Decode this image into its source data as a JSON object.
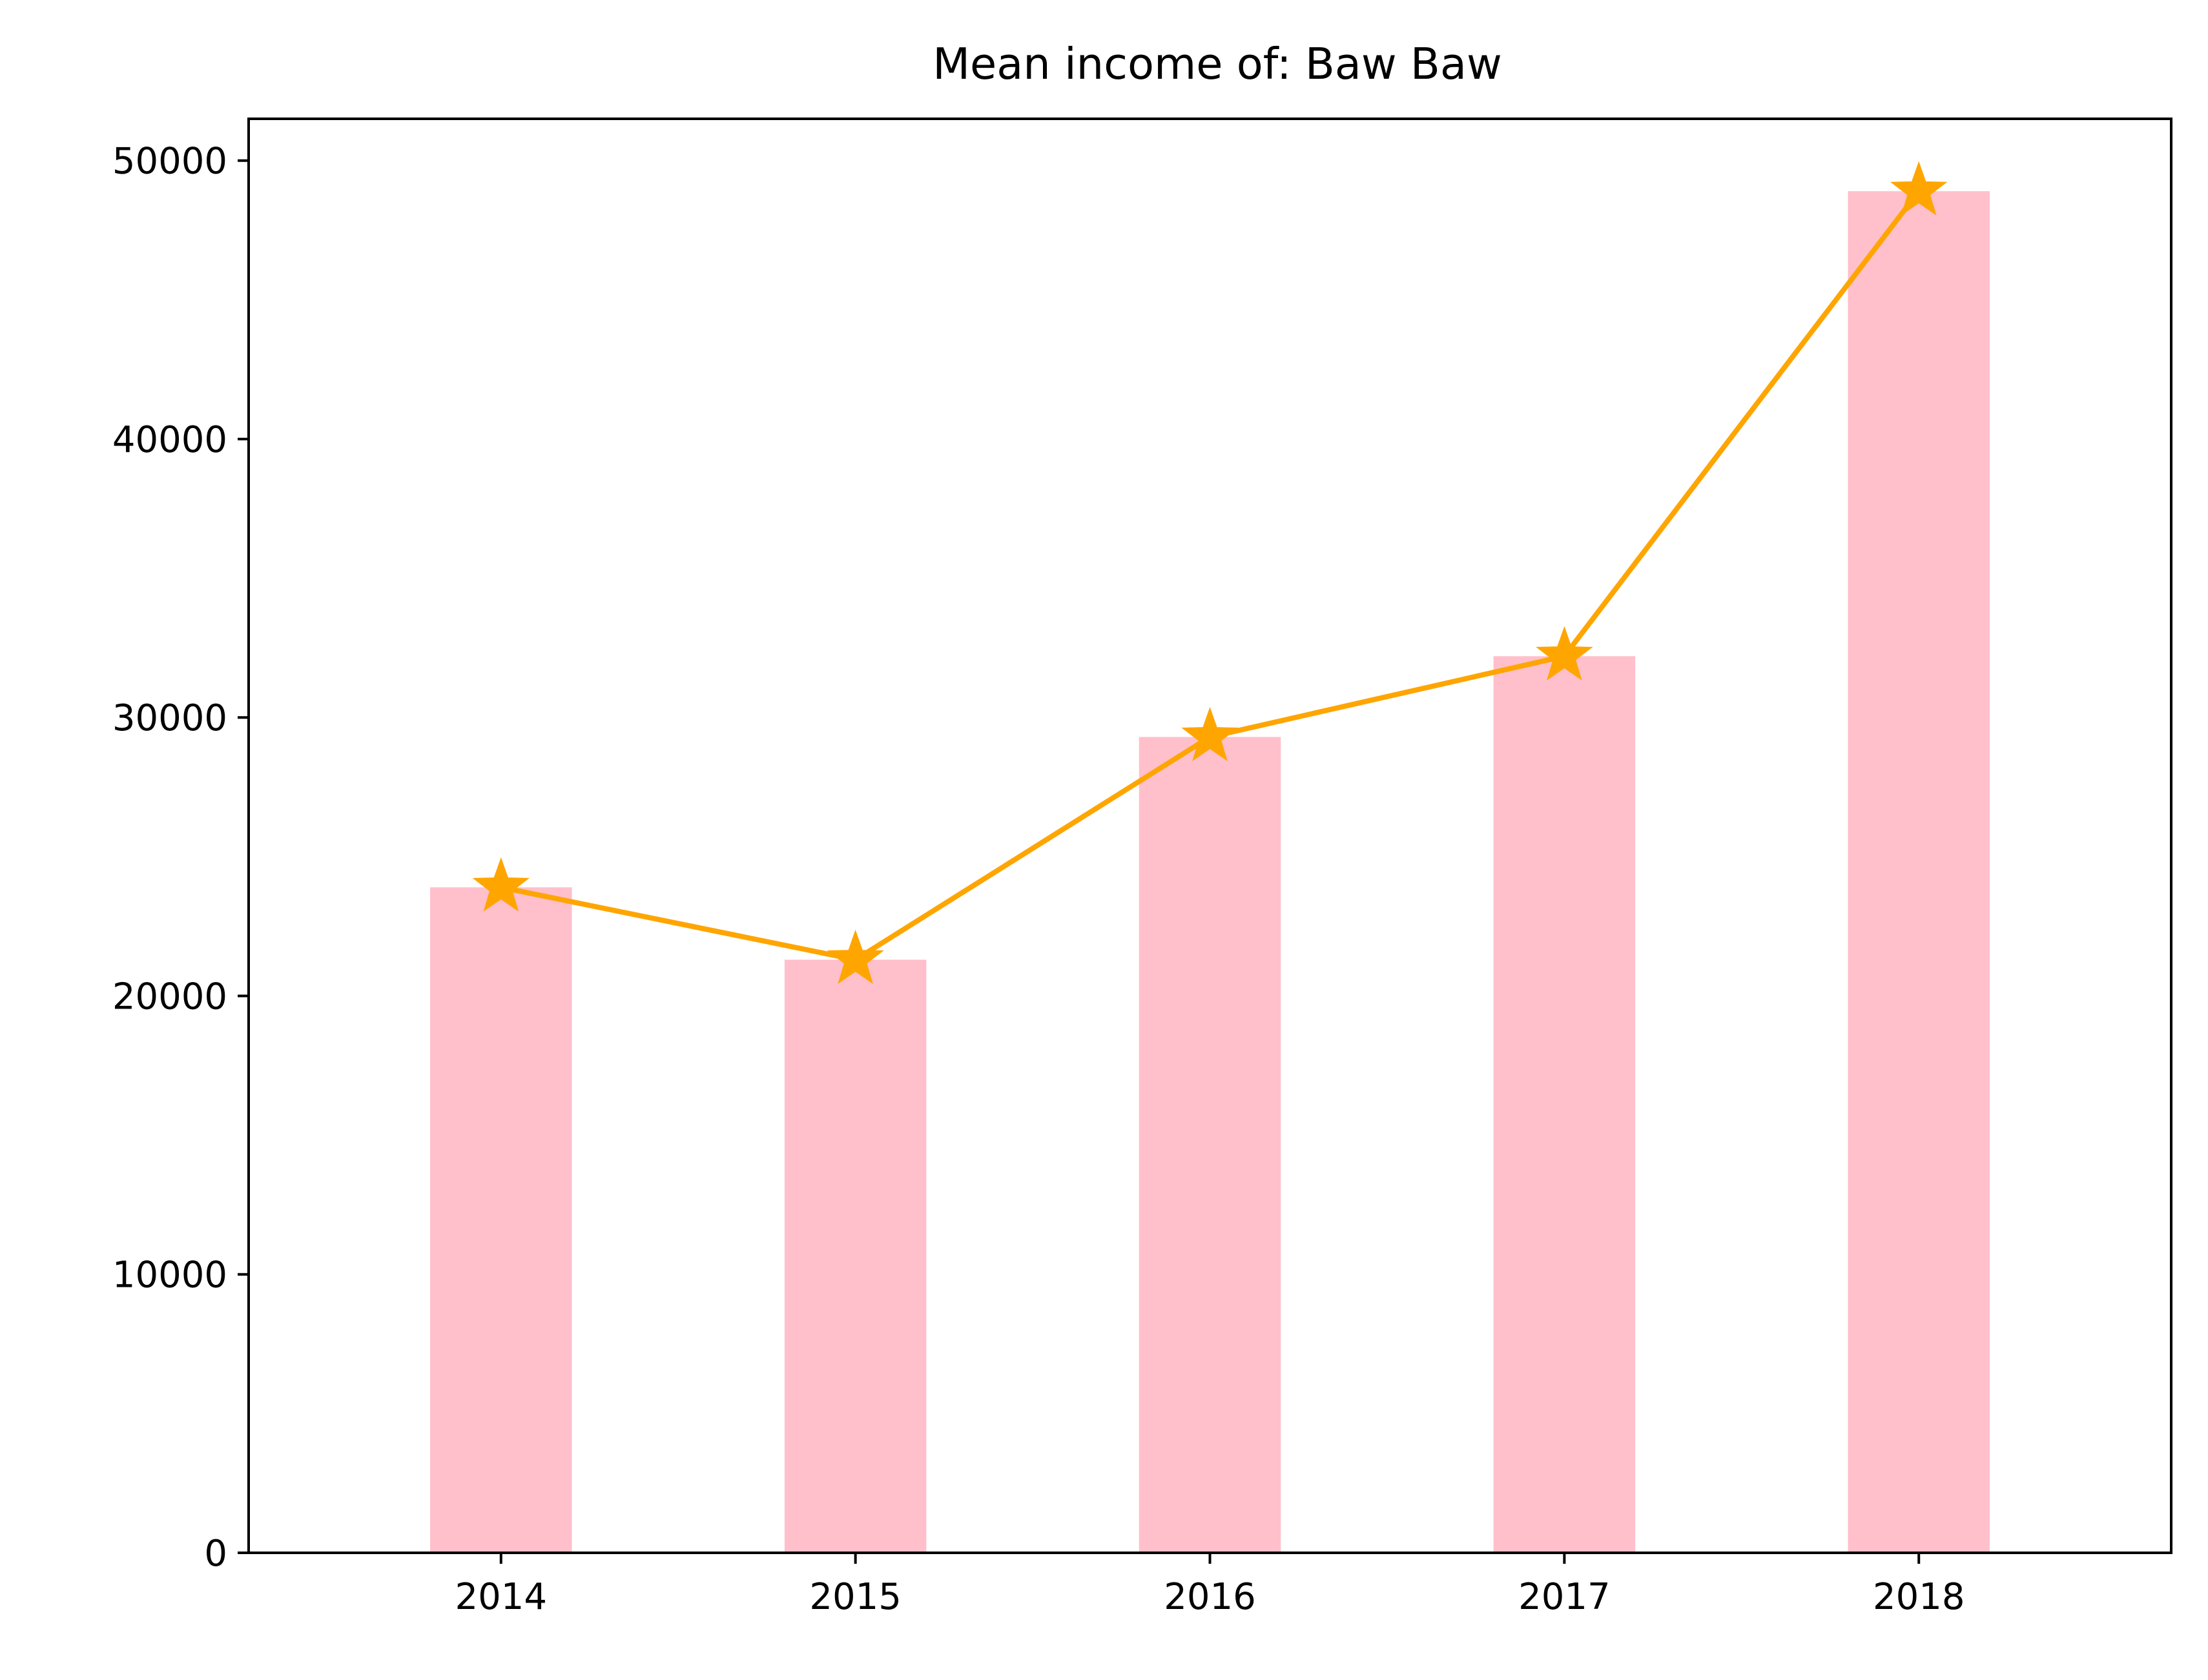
{
  "chart_data": {
    "type": "bar",
    "title": "Mean income of: Baw Baw",
    "xlabel": "",
    "ylabel": "",
    "categories": [
      "2014",
      "2015",
      "2016",
      "2017",
      "2018"
    ],
    "values": [
      23900,
      21300,
      29300,
      32200,
      48900
    ],
    "overlay_line": {
      "values": [
        23900,
        21300,
        29300,
        32200,
        48900
      ],
      "marker": "star"
    },
    "ylim": [
      0,
      51500
    ],
    "yticks": [
      0,
      10000,
      20000,
      30000,
      40000,
      50000
    ],
    "grid": false,
    "legend": "none",
    "colors": {
      "bar": "#ffc0cb",
      "line": "#ffa500",
      "axis": "#000000",
      "background": "#ffffff"
    }
  }
}
